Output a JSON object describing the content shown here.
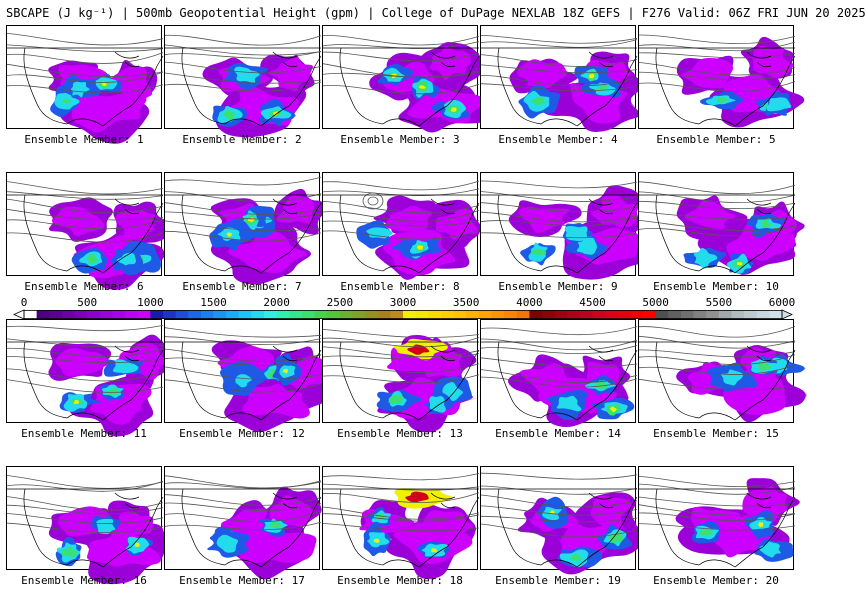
{
  "header": {
    "title": "SBCAPE (J kg⁻¹) | 500mb Geopotential Height (gpm) | College of DuPage NEXLAB 18Z GEFS | F276 Valid: 06Z FRI JUN 20 2025"
  },
  "members": [
    {
      "label": "Ensemble Member: 1"
    },
    {
      "label": "Ensemble Member: 2"
    },
    {
      "label": "Ensemble Member: 3"
    },
    {
      "label": "Ensemble Member: 4"
    },
    {
      "label": "Ensemble Member: 5"
    },
    {
      "label": "Ensemble Member: 6"
    },
    {
      "label": "Ensemble Member: 7"
    },
    {
      "label": "Ensemble Member: 8"
    },
    {
      "label": "Ensemble Member: 9"
    },
    {
      "label": "Ensemble Member: 10"
    },
    {
      "label": "Ensemble Member: 11"
    },
    {
      "label": "Ensemble Member: 12"
    },
    {
      "label": "Ensemble Member: 13"
    },
    {
      "label": "Ensemble Member: 14"
    },
    {
      "label": "Ensemble Member: 15"
    },
    {
      "label": "Ensemble Member: 16"
    },
    {
      "label": "Ensemble Member: 17"
    },
    {
      "label": "Ensemble Member: 18"
    },
    {
      "label": "Ensemble Member: 19"
    },
    {
      "label": "Ensemble Member: 20"
    }
  ],
  "colorbar": {
    "labels": [
      "0",
      "500",
      "1000",
      "1500",
      "2000",
      "2500",
      "3000",
      "3500",
      "4000",
      "4500",
      "5000",
      "5500",
      "6000"
    ],
    "min": 0,
    "max": 6000,
    "step": 100,
    "bands": [
      {
        "from": 0,
        "to": 100,
        "color": "#ffffff"
      },
      {
        "from": 100,
        "to": 1000,
        "colors": [
          "#4b0082",
          "#5a0096",
          "#6a00aa",
          "#7a00be",
          "#8a00d2",
          "#9a00e0",
          "#aa00ee",
          "#bb00f4",
          "#cc00ff"
        ]
      },
      {
        "from": 1000,
        "to": 2000,
        "colors": [
          "#1a1ab0",
          "#1e32cc",
          "#1f4be0",
          "#1e64ee",
          "#1a7df5",
          "#1896f8",
          "#17aef8",
          "#1ac6f4",
          "#22dcec",
          "#2ef0e0"
        ]
      },
      {
        "from": 2000,
        "to": 3000,
        "colors": [
          "#2ef0b0",
          "#30e890",
          "#3ae070",
          "#4ad050",
          "#5ac040",
          "#6cb038",
          "#80a030",
          "#949028",
          "#a88020",
          "#bc8c18"
        ]
      },
      {
        "from": 3000,
        "to": 4000,
        "colors": [
          "#f0f000",
          "#f4e800",
          "#f8dc00",
          "#fcd000",
          "#ffc400",
          "#ffb400",
          "#ffa400",
          "#ff9400",
          "#ff8400",
          "#f87400"
        ]
      },
      {
        "from": 4000,
        "to": 5000,
        "colors": [
          "#800000",
          "#900008",
          "#a00010",
          "#b00018",
          "#c00020",
          "#d00020",
          "#dc0018",
          "#e60010",
          "#f00008",
          "#ff0000"
        ]
      },
      {
        "from": 5000,
        "to": 6000,
        "colors": [
          "#505050",
          "#606060",
          "#707070",
          "#808080",
          "#909090",
          "#a0a8ac",
          "#b0bcc0",
          "#bccacf",
          "#c6d6dc",
          "#d0e0e6"
        ]
      }
    ]
  },
  "map_layers": {
    "cape_colors": {
      "low": "#9c00d8",
      "mid_low": "#cc00ff",
      "blue": "#1e5ae6",
      "cyan": "#22dcec",
      "green": "#3ae070",
      "yellow": "#f0f000",
      "red": "#d00020"
    },
    "contour_color": "#555555",
    "border_color": "#000000"
  }
}
